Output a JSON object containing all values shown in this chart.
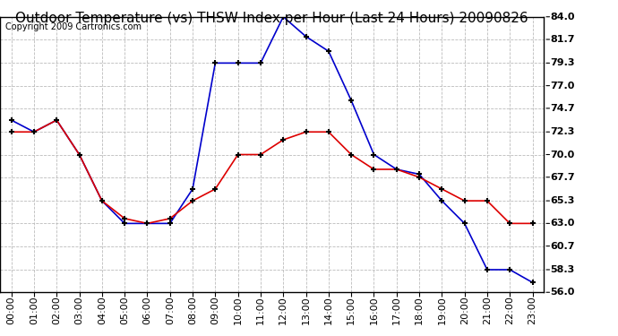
{
  "title": "Outdoor Temperature (vs) THSW Index per Hour (Last 24 Hours) 20090826",
  "copyright_text": "Copyright 2009 Cartronics.com",
  "hours": [
    "00:00",
    "01:00",
    "02:00",
    "03:00",
    "04:00",
    "05:00",
    "06:00",
    "07:00",
    "08:00",
    "09:00",
    "10:00",
    "11:00",
    "12:00",
    "13:00",
    "14:00",
    "15:00",
    "16:00",
    "17:00",
    "18:00",
    "19:00",
    "20:00",
    "21:00",
    "22:00",
    "23:00"
  ],
  "temp": [
    72.3,
    72.3,
    73.5,
    70.0,
    65.3,
    63.5,
    63.0,
    63.5,
    65.3,
    66.5,
    70.0,
    70.0,
    71.5,
    72.3,
    72.3,
    70.0,
    68.5,
    68.5,
    67.7,
    66.5,
    65.3,
    65.3,
    63.0,
    63.0
  ],
  "thsw": [
    73.5,
    72.3,
    73.5,
    70.0,
    65.3,
    63.0,
    63.0,
    63.0,
    66.5,
    79.3,
    79.3,
    79.3,
    84.0,
    82.0,
    80.5,
    75.5,
    70.0,
    68.5,
    68.0,
    65.3,
    63.0,
    58.3,
    58.3,
    57.0
  ],
  "ylim_min": 56.0,
  "ylim_max": 84.0,
  "yticks": [
    56.0,
    58.3,
    60.7,
    63.0,
    65.3,
    67.7,
    70.0,
    72.3,
    74.7,
    77.0,
    79.3,
    81.7,
    84.0
  ],
  "bg_color": "#ffffff",
  "plot_bg_color": "#ffffff",
  "grid_color": "#bbbbbb",
  "temp_color": "#dd0000",
  "thsw_color": "#0000cc",
  "title_fontsize": 11,
  "tick_fontsize": 8,
  "copyright_fontsize": 7
}
